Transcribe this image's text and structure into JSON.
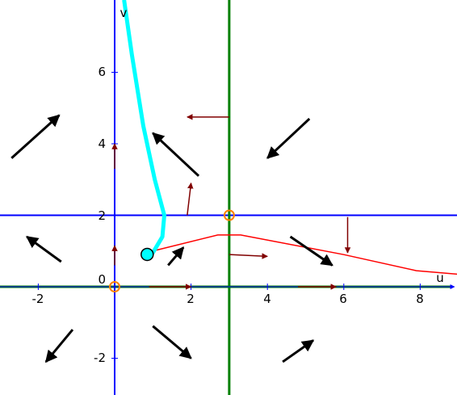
{
  "axes": {
    "x_label": "u",
    "y_label": "v",
    "x_ticks": [
      "-2",
      "2",
      "4",
      "6",
      "8"
    ],
    "y_ticks": [
      "-2",
      "2",
      "4",
      "6"
    ],
    "origin_label": "0"
  },
  "colors": {
    "axis": "#0000ff",
    "nullcline_blue": "#0000ff",
    "nullcline_green": "#008000",
    "curve_red": "#ff0000",
    "trajectory": "#00ffff",
    "arrow_dark": "#000000",
    "arrow_red": "#800000",
    "equilibrium": "#ff8000"
  },
  "chart_data": {
    "type": "phase-portrait",
    "nullclines": {
      "horizontal": {
        "v": 2
      },
      "vertical": {
        "u": 3
      },
      "v_axis": {
        "u": 0
      },
      "u_axis": {
        "v": 0
      }
    },
    "equilibria": [
      {
        "u": 0,
        "v": 0
      },
      {
        "u": 3,
        "v": 2
      }
    ],
    "red_curve": [
      {
        "u": 1.0,
        "v": 1.0
      },
      {
        "u": 2.7,
        "v": 1.45
      },
      {
        "u": 3.3,
        "v": 1.45
      },
      {
        "u": 6.0,
        "v": 0.9
      },
      {
        "u": 7.9,
        "v": 0.45
      },
      {
        "u": 9.0,
        "v": 0.35
      }
    ],
    "trajectory": {
      "start": {
        "u": 1.0,
        "v": 0.95
      },
      "points": [
        {
          "u": 1.0,
          "v": 0.95
        },
        {
          "u": 1.25,
          "v": 1.4
        },
        {
          "u": 1.3,
          "v": 2.0
        },
        {
          "u": 1.05,
          "v": 3.0
        },
        {
          "u": 0.75,
          "v": 4.5
        },
        {
          "u": 0.45,
          "v": 6.5
        },
        {
          "u": 0.25,
          "v": 8.0
        }
      ]
    },
    "direction_field_dark": [
      {
        "from": [
          -2.7,
          3.6
        ],
        "to": [
          -1.45,
          4.8
        ]
      },
      {
        "from": [
          5.1,
          4.7
        ],
        "to": [
          4.0,
          3.6
        ]
      },
      {
        "from": [
          2.2,
          3.1
        ],
        "to": [
          1.0,
          4.3
        ]
      },
      {
        "from": [
          -1.4,
          0.7
        ],
        "to": [
          -2.3,
          1.4
        ]
      },
      {
        "from": [
          1.4,
          0.6
        ],
        "to": [
          1.8,
          1.1
        ]
      },
      {
        "from": [
          4.6,
          1.4
        ],
        "to": [
          5.7,
          0.6
        ]
      },
      {
        "from": [
          -1.1,
          -1.2
        ],
        "to": [
          -1.8,
          -2.1
        ]
      },
      {
        "from": [
          1.0,
          -1.1
        ],
        "to": [
          2.0,
          -2.0
        ]
      },
      {
        "from": [
          4.4,
          -2.1
        ],
        "to": [
          5.2,
          -1.5
        ]
      }
    ],
    "direction_field_red": [
      {
        "from": [
          3.0,
          4.75
        ],
        "to": [
          1.9,
          4.75
        ]
      },
      {
        "from": [
          1.9,
          2.0
        ],
        "to": [
          2.0,
          2.9
        ]
      },
      {
        "from": [
          3.0,
          0.9
        ],
        "to": [
          4.0,
          0.85
        ]
      },
      {
        "from": [
          6.1,
          1.95
        ],
        "to": [
          6.1,
          0.95
        ]
      },
      {
        "from": [
          0.0,
          3.3
        ],
        "to": [
          0.0,
          4.0
        ]
      },
      {
        "from": [
          0.0,
          0.6
        ],
        "to": [
          0.0,
          1.15
        ]
      },
      {
        "from": [
          0.9,
          0.0
        ],
        "to": [
          2.0,
          0.0
        ]
      },
      {
        "from": [
          4.8,
          0.0
        ],
        "to": [
          5.8,
          0.0
        ]
      }
    ]
  }
}
